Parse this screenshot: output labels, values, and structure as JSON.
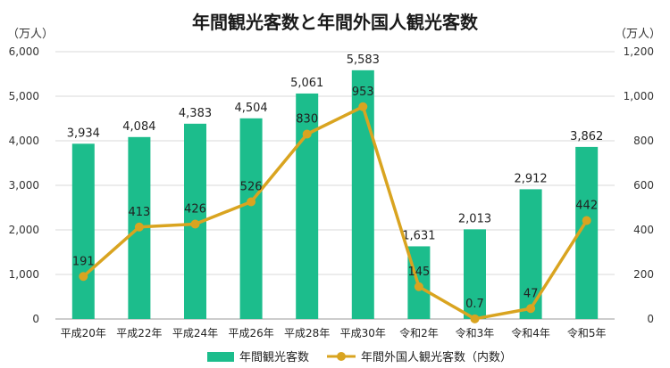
{
  "chart_data": {
    "type": "bar",
    "title": "年間観光客数と年間外国人観光客数",
    "left_unit": "（万人）",
    "right_unit": "（万人）",
    "categories": [
      "平成20年",
      "平成22年",
      "平成24年",
      "平成26年",
      "平成28年",
      "平成30年",
      "令和2年",
      "令和3年",
      "令和4年",
      "令和5年"
    ],
    "left_ylim": [
      0,
      6000
    ],
    "left_ticks": [
      "0",
      "1,000",
      "2,000",
      "3,000",
      "4,000",
      "5,000",
      "6,000"
    ],
    "right_ylim": [
      0,
      1200
    ],
    "right_ticks": [
      "0",
      "200",
      "400",
      "600",
      "800",
      "1,000",
      "1,200"
    ],
    "grid": true,
    "legend_position": "bottom",
    "series": [
      {
        "name": "年間観光客数",
        "kind": "bar",
        "axis": "left",
        "color": "#1cbd8c",
        "values": [
          3934,
          4084,
          4383,
          4504,
          5061,
          5583,
          1631,
          2013,
          2912,
          3862
        ],
        "labels": [
          "3,934",
          "4,084",
          "4,383",
          "4,504",
          "5,061",
          "5,583",
          "1,631",
          "2,013",
          "2,912",
          "3,862"
        ]
      },
      {
        "name": "年間外国人観光客数（内数）",
        "kind": "line",
        "axis": "right",
        "color": "#d9a420",
        "values": [
          191,
          413,
          426,
          526,
          830,
          953,
          145,
          0.7,
          47,
          442
        ],
        "labels": [
          "191",
          "413",
          "426",
          "526",
          "830",
          "953",
          "145",
          "0.7",
          "47",
          "442"
        ]
      }
    ]
  }
}
